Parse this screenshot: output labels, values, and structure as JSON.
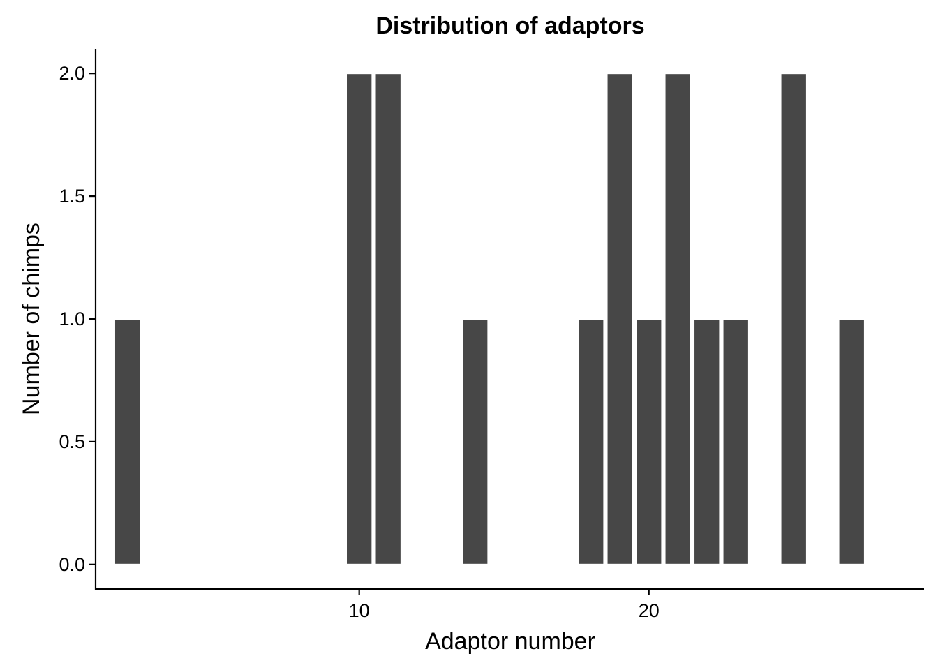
{
  "chart_data": {
    "type": "bar",
    "title": "Distribution of adaptors",
    "xlabel": "Adaptor number",
    "ylabel": "Number of chimps",
    "x": [
      2,
      10,
      11,
      14,
      18,
      19,
      20,
      21,
      22,
      23,
      25,
      27
    ],
    "values": [
      1,
      2,
      2,
      1,
      1,
      2,
      1,
      2,
      1,
      1,
      2,
      1
    ],
    "bar_color": "#474747",
    "bar_outline_color": "#ffffff",
    "xlim": [
      0.9,
      29.5
    ],
    "ylim": [
      -0.1,
      2.1
    ],
    "x_ticks": [
      10,
      20
    ],
    "x_tick_labels": [
      "10",
      "20"
    ],
    "y_ticks": [
      0.0,
      0.5,
      1.0,
      1.5,
      2.0
    ],
    "y_tick_labels": [
      "0.0",
      "0.5",
      "1.0",
      "1.5",
      "2.0"
    ],
    "grid": false,
    "legend": "none"
  }
}
